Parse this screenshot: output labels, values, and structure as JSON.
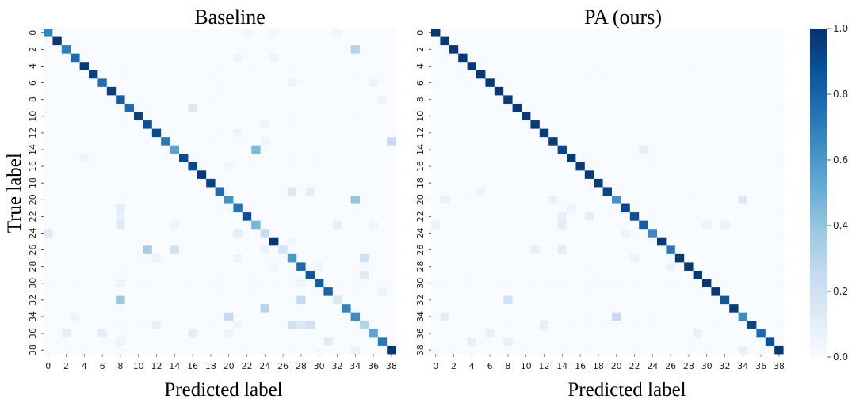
{
  "chart_data": [
    {
      "type": "heatmap",
      "title": "Baseline",
      "xlabel": "Predicted label",
      "ylabel": "True label",
      "n_classes": 39,
      "tick_labels": [
        "0",
        "2",
        "4",
        "6",
        "8",
        "10",
        "12",
        "14",
        "16",
        "18",
        "20",
        "22",
        "24",
        "26",
        "28",
        "30",
        "32",
        "34",
        "36",
        "38"
      ],
      "vmin": 0.0,
      "vmax": 1.0,
      "diagonal": [
        0.68,
        0.97,
        0.7,
        0.78,
        0.96,
        0.93,
        0.75,
        0.94,
        0.83,
        0.77,
        0.93,
        0.87,
        0.9,
        0.72,
        0.55,
        0.9,
        0.92,
        0.97,
        0.93,
        0.77,
        0.62,
        0.74,
        0.88,
        0.47,
        0.25,
        0.98,
        0.18,
        0.6,
        0.78,
        0.85,
        0.83,
        0.8,
        0.15,
        0.68,
        0.65,
        0.3,
        0.55,
        0.72,
        0.97
      ],
      "off_diagonal": [
        {
          "row": 0,
          "col": 22,
          "value": 0.04
        },
        {
          "row": 0,
          "col": 25,
          "value": 0.04
        },
        {
          "row": 0,
          "col": 32,
          "value": 0.04
        },
        {
          "row": 2,
          "col": 34,
          "value": 0.3
        },
        {
          "row": 3,
          "col": 21,
          "value": 0.05
        },
        {
          "row": 3,
          "col": 25,
          "value": 0.05
        },
        {
          "row": 6,
          "col": 27,
          "value": 0.06
        },
        {
          "row": 6,
          "col": 36,
          "value": 0.05
        },
        {
          "row": 8,
          "col": 37,
          "value": 0.05
        },
        {
          "row": 9,
          "col": 16,
          "value": 0.15
        },
        {
          "row": 11,
          "col": 24,
          "value": 0.05
        },
        {
          "row": 12,
          "col": 21,
          "value": 0.05
        },
        {
          "row": 13,
          "col": 24,
          "value": 0.05
        },
        {
          "row": 13,
          "col": 38,
          "value": 0.25
        },
        {
          "row": 14,
          "col": 23,
          "value": 0.45
        },
        {
          "row": 15,
          "col": 4,
          "value": 0.05
        },
        {
          "row": 16,
          "col": 20,
          "value": 0.04
        },
        {
          "row": 19,
          "col": 27,
          "value": 0.15
        },
        {
          "row": 19,
          "col": 29,
          "value": 0.1
        },
        {
          "row": 20,
          "col": 34,
          "value": 0.4
        },
        {
          "row": 21,
          "col": 8,
          "value": 0.1
        },
        {
          "row": 22,
          "col": 8,
          "value": 0.08
        },
        {
          "row": 23,
          "col": 8,
          "value": 0.12
        },
        {
          "row": 23,
          "col": 14,
          "value": 0.05
        },
        {
          "row": 23,
          "col": 32,
          "value": 0.1
        },
        {
          "row": 23,
          "col": 36,
          "value": 0.05
        },
        {
          "row": 24,
          "col": 0,
          "value": 0.12
        },
        {
          "row": 24,
          "col": 21,
          "value": 0.1
        },
        {
          "row": 25,
          "col": 27,
          "value": 0.04
        },
        {
          "row": 26,
          "col": 11,
          "value": 0.35
        },
        {
          "row": 26,
          "col": 14,
          "value": 0.2
        },
        {
          "row": 26,
          "col": 24,
          "value": 0.06
        },
        {
          "row": 27,
          "col": 12,
          "value": 0.05
        },
        {
          "row": 27,
          "col": 21,
          "value": 0.05
        },
        {
          "row": 27,
          "col": 35,
          "value": 0.2
        },
        {
          "row": 28,
          "col": 25,
          "value": 0.04
        },
        {
          "row": 28,
          "col": 30,
          "value": 0.05
        },
        {
          "row": 29,
          "col": 35,
          "value": 0.12
        },
        {
          "row": 30,
          "col": 8,
          "value": 0.06
        },
        {
          "row": 30,
          "col": 28,
          "value": 0.05
        },
        {
          "row": 31,
          "col": 37,
          "value": 0.05
        },
        {
          "row": 32,
          "col": 8,
          "value": 0.38
        },
        {
          "row": 32,
          "col": 28,
          "value": 0.25
        },
        {
          "row": 33,
          "col": 24,
          "value": 0.3
        },
        {
          "row": 34,
          "col": 3,
          "value": 0.06
        },
        {
          "row": 34,
          "col": 20,
          "value": 0.25
        },
        {
          "row": 35,
          "col": 12,
          "value": 0.08
        },
        {
          "row": 35,
          "col": 21,
          "value": 0.05
        },
        {
          "row": 35,
          "col": 27,
          "value": 0.2
        },
        {
          "row": 35,
          "col": 28,
          "value": 0.15
        },
        {
          "row": 35,
          "col": 29,
          "value": 0.2
        },
        {
          "row": 36,
          "col": 2,
          "value": 0.1
        },
        {
          "row": 36,
          "col": 6,
          "value": 0.1
        },
        {
          "row": 36,
          "col": 16,
          "value": 0.1
        },
        {
          "row": 36,
          "col": 20,
          "value": 0.06
        },
        {
          "row": 37,
          "col": 8,
          "value": 0.05
        },
        {
          "row": 37,
          "col": 31,
          "value": 0.12
        },
        {
          "row": 38,
          "col": 34,
          "value": 0.06
        }
      ]
    },
    {
      "type": "heatmap",
      "title": "PA (ours)",
      "xlabel": "Predicted label",
      "ylabel": "",
      "n_classes": 39,
      "tick_labels": [
        "0",
        "2",
        "4",
        "6",
        "8",
        "10",
        "12",
        "14",
        "16",
        "18",
        "20",
        "22",
        "24",
        "26",
        "28",
        "30",
        "32",
        "34",
        "36",
        "38"
      ],
      "vmin": 0.0,
      "vmax": 1.0,
      "diagonal": [
        0.98,
        0.96,
        0.97,
        0.98,
        0.97,
        0.96,
        0.97,
        0.97,
        0.96,
        0.97,
        0.97,
        0.96,
        0.96,
        0.95,
        0.92,
        0.97,
        0.96,
        0.96,
        0.96,
        0.93,
        0.62,
        0.92,
        0.88,
        0.82,
        0.65,
        0.96,
        0.72,
        0.97,
        0.97,
        0.97,
        0.98,
        0.97,
        0.85,
        0.96,
        0.65,
        0.92,
        0.78,
        0.88,
        0.97
      ],
      "off_diagonal": [
        {
          "row": 14,
          "col": 23,
          "value": 0.1
        },
        {
          "row": 19,
          "col": 5,
          "value": 0.06
        },
        {
          "row": 20,
          "col": 1,
          "value": 0.08
        },
        {
          "row": 20,
          "col": 13,
          "value": 0.08
        },
        {
          "row": 20,
          "col": 34,
          "value": 0.15
        },
        {
          "row": 21,
          "col": 15,
          "value": 0.05
        },
        {
          "row": 22,
          "col": 14,
          "value": 0.08
        },
        {
          "row": 22,
          "col": 17,
          "value": 0.1
        },
        {
          "row": 23,
          "col": 0,
          "value": 0.06
        },
        {
          "row": 23,
          "col": 14,
          "value": 0.1
        },
        {
          "row": 23,
          "col": 30,
          "value": 0.06
        },
        {
          "row": 23,
          "col": 32,
          "value": 0.08
        },
        {
          "row": 24,
          "col": 21,
          "value": 0.05
        },
        {
          "row": 26,
          "col": 11,
          "value": 0.08
        },
        {
          "row": 26,
          "col": 14,
          "value": 0.1
        },
        {
          "row": 27,
          "col": 22,
          "value": 0.05
        },
        {
          "row": 28,
          "col": 26,
          "value": 0.06
        },
        {
          "row": 32,
          "col": 8,
          "value": 0.2
        },
        {
          "row": 34,
          "col": 1,
          "value": 0.1
        },
        {
          "row": 34,
          "col": 20,
          "value": 0.25
        },
        {
          "row": 35,
          "col": 12,
          "value": 0.1
        },
        {
          "row": 36,
          "col": 6,
          "value": 0.08
        },
        {
          "row": 36,
          "col": 29,
          "value": 0.08
        },
        {
          "row": 37,
          "col": 4,
          "value": 0.08
        },
        {
          "row": 37,
          "col": 8,
          "value": 0.08
        },
        {
          "row": 38,
          "col": 34,
          "value": 0.08
        }
      ]
    }
  ],
  "colorbar": {
    "ticks": [
      "0.0",
      "0.2",
      "0.4",
      "0.6",
      "0.8",
      "1.0"
    ],
    "colormap": "Blues",
    "colors": [
      "#f7fbff",
      "#deebf7",
      "#c6dbef",
      "#9ecae1",
      "#6baed6",
      "#4292c6",
      "#2171b5",
      "#08519c",
      "#08306b"
    ]
  }
}
